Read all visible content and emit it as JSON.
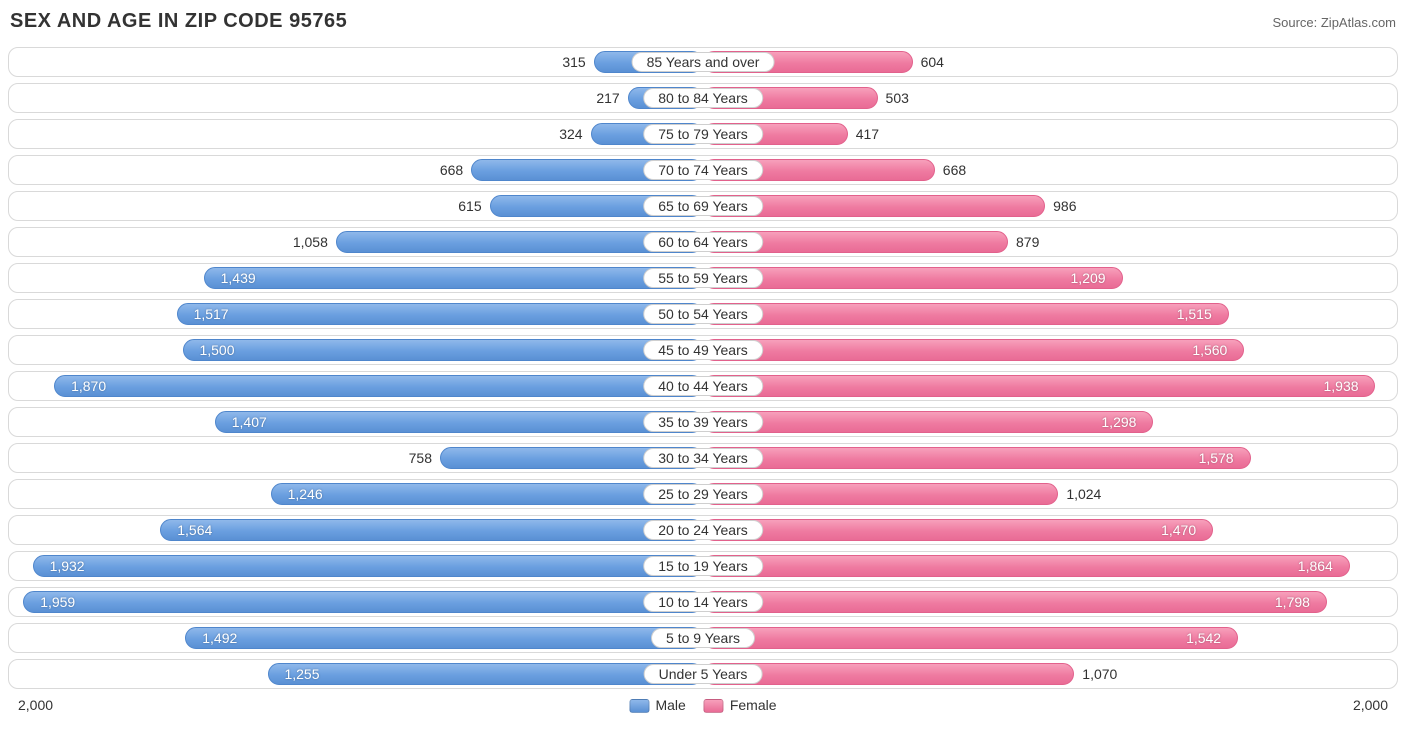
{
  "title": "SEX AND AGE IN ZIP CODE 95765",
  "source": "Source: ZipAtlas.com",
  "chart": {
    "type": "bidirectional-bar",
    "max": 2000,
    "axis_label": "2,000",
    "inside_threshold": 1100,
    "male_color": "#6a9fe0",
    "female_color": "#ef7ba1",
    "border_color": "#d9d9d9",
    "background_color": "#ffffff",
    "text_color": "#333333",
    "label_fontsize": 14,
    "title_fontsize": 20,
    "legend": {
      "male": "Male",
      "female": "Female"
    },
    "rows": [
      {
        "label": "85 Years and over",
        "male": 315,
        "male_txt": "315",
        "female": 604,
        "female_txt": "604"
      },
      {
        "label": "80 to 84 Years",
        "male": 217,
        "male_txt": "217",
        "female": 503,
        "female_txt": "503"
      },
      {
        "label": "75 to 79 Years",
        "male": 324,
        "male_txt": "324",
        "female": 417,
        "female_txt": "417"
      },
      {
        "label": "70 to 74 Years",
        "male": 668,
        "male_txt": "668",
        "female": 668,
        "female_txt": "668"
      },
      {
        "label": "65 to 69 Years",
        "male": 615,
        "male_txt": "615",
        "female": 986,
        "female_txt": "986"
      },
      {
        "label": "60 to 64 Years",
        "male": 1058,
        "male_txt": "1,058",
        "female": 879,
        "female_txt": "879"
      },
      {
        "label": "55 to 59 Years",
        "male": 1439,
        "male_txt": "1,439",
        "female": 1209,
        "female_txt": "1,209"
      },
      {
        "label": "50 to 54 Years",
        "male": 1517,
        "male_txt": "1,517",
        "female": 1515,
        "female_txt": "1,515"
      },
      {
        "label": "45 to 49 Years",
        "male": 1500,
        "male_txt": "1,500",
        "female": 1560,
        "female_txt": "1,560"
      },
      {
        "label": "40 to 44 Years",
        "male": 1870,
        "male_txt": "1,870",
        "female": 1938,
        "female_txt": "1,938"
      },
      {
        "label": "35 to 39 Years",
        "male": 1407,
        "male_txt": "1,407",
        "female": 1298,
        "female_txt": "1,298"
      },
      {
        "label": "30 to 34 Years",
        "male": 758,
        "male_txt": "758",
        "female": 1578,
        "female_txt": "1,578"
      },
      {
        "label": "25 to 29 Years",
        "male": 1246,
        "male_txt": "1,246",
        "female": 1024,
        "female_txt": "1,024"
      },
      {
        "label": "20 to 24 Years",
        "male": 1564,
        "male_txt": "1,564",
        "female": 1470,
        "female_txt": "1,470"
      },
      {
        "label": "15 to 19 Years",
        "male": 1932,
        "male_txt": "1,932",
        "female": 1864,
        "female_txt": "1,864"
      },
      {
        "label": "10 to 14 Years",
        "male": 1959,
        "male_txt": "1,959",
        "female": 1798,
        "female_txt": "1,798"
      },
      {
        "label": "5 to 9 Years",
        "male": 1492,
        "male_txt": "1,492",
        "female": 1542,
        "female_txt": "1,542"
      },
      {
        "label": "Under 5 Years",
        "male": 1255,
        "male_txt": "1,255",
        "female": 1070,
        "female_txt": "1,070"
      }
    ]
  }
}
